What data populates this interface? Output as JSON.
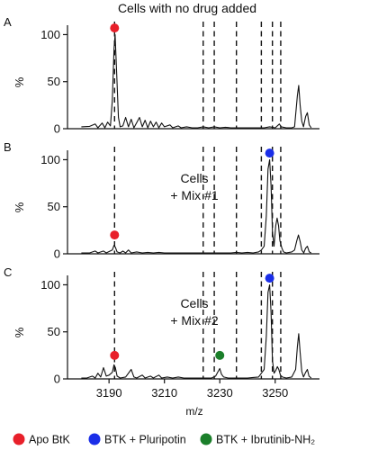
{
  "title": "Cells with no drug added",
  "xlabel": "m/z",
  "colors": {
    "apo": "#e8202a",
    "pluripotin": "#1a2ee8",
    "ibrutinib": "#1b7f2a"
  },
  "legend": [
    {
      "label": "Apo BtK",
      "color": "#e8202a"
    },
    {
      "label": "BTK + Pluripotin",
      "color": "#1a2ee8"
    },
    {
      "label": "BTK + Ibrutinib-NH₂",
      "color": "#1b7f2a"
    }
  ],
  "chart_data": {
    "type": "line",
    "xlabel": "m/z",
    "ylabel": "%",
    "xlim": [
      3175,
      3266
    ],
    "ylim": [
      0,
      110
    ],
    "xticks": [
      3190,
      3210,
      3230,
      3250
    ],
    "yticks": [
      0,
      50,
      100
    ],
    "panels": [
      {
        "letter": "A",
        "annotation": [],
        "dashed_lines": [
          3192,
          3224,
          3228,
          3236,
          3245,
          3249,
          3252
        ],
        "markers": [
          {
            "x": 3192,
            "y": 107,
            "label": "Apo BtK"
          }
        ],
        "spectrum": [
          [
            3180,
            2
          ],
          [
            3183,
            2.5
          ],
          [
            3185,
            5
          ],
          [
            3186,
            1
          ],
          [
            3187.5,
            6
          ],
          [
            3188.5,
            1
          ],
          [
            3189.5,
            7
          ],
          [
            3190.5,
            3
          ],
          [
            3191.2,
            30
          ],
          [
            3191.8,
            85
          ],
          [
            3192.2,
            100
          ],
          [
            3192.8,
            55
          ],
          [
            3193.4,
            12
          ],
          [
            3194,
            2
          ],
          [
            3195,
            3
          ],
          [
            3196,
            12
          ],
          [
            3197,
            2
          ],
          [
            3198,
            10
          ],
          [
            3199,
            1
          ],
          [
            3201,
            12
          ],
          [
            3202,
            2
          ],
          [
            3203,
            9
          ],
          [
            3204,
            1
          ],
          [
            3205,
            8
          ],
          [
            3206,
            2
          ],
          [
            3207,
            7
          ],
          [
            3208,
            1
          ],
          [
            3209,
            6
          ],
          [
            3210,
            2
          ],
          [
            3212,
            4
          ],
          [
            3213,
            1
          ],
          [
            3215,
            3
          ],
          [
            3216,
            1
          ],
          [
            3218,
            2
          ],
          [
            3220,
            1
          ],
          [
            3222,
            1
          ],
          [
            3224,
            2
          ],
          [
            3226,
            1
          ],
          [
            3228,
            2
          ],
          [
            3230,
            1
          ],
          [
            3232,
            1.5
          ],
          [
            3234,
            1
          ],
          [
            3236,
            1
          ],
          [
            3238,
            1
          ],
          [
            3240,
            1
          ],
          [
            3242,
            1
          ],
          [
            3244,
            1
          ],
          [
            3246,
            1
          ],
          [
            3248,
            2
          ],
          [
            3250,
            1
          ],
          [
            3251.5,
            5
          ],
          [
            3252.2,
            2
          ],
          [
            3254,
            1
          ],
          [
            3256,
            1
          ],
          [
            3257,
            2
          ],
          [
            3258,
            35
          ],
          [
            3258.5,
            46
          ],
          [
            3259,
            25
          ],
          [
            3259.6,
            8
          ],
          [
            3260.2,
            2
          ],
          [
            3261,
            13
          ],
          [
            3261.6,
            17
          ],
          [
            3262.3,
            4
          ],
          [
            3263,
            1
          ]
        ]
      },
      {
        "letter": "B",
        "annotation": [
          "Cells",
          "+ Mix #1"
        ],
        "dashed_lines": [
          3192,
          3224,
          3228,
          3236,
          3245,
          3249,
          3252
        ],
        "markers": [
          {
            "x": 3192,
            "y": 20,
            "label": "Apo BtK"
          },
          {
            "x": 3248,
            "y": 107,
            "label": "BTK + Pluripotin"
          }
        ],
        "spectrum": [
          [
            3180,
            1
          ],
          [
            3183,
            1
          ],
          [
            3185,
            3
          ],
          [
            3186,
            1
          ],
          [
            3188,
            3
          ],
          [
            3189,
            1
          ],
          [
            3191.2,
            4
          ],
          [
            3191.8,
            9
          ],
          [
            3192.3,
            7
          ],
          [
            3192.9,
            2
          ],
          [
            3194,
            1
          ],
          [
            3195,
            3
          ],
          [
            3196,
            1
          ],
          [
            3197,
            4
          ],
          [
            3198,
            1
          ],
          [
            3200,
            2
          ],
          [
            3202,
            1
          ],
          [
            3204,
            1.5
          ],
          [
            3206,
            1
          ],
          [
            3208,
            1.5
          ],
          [
            3210,
            1
          ],
          [
            3212,
            1
          ],
          [
            3214,
            1
          ],
          [
            3216,
            1
          ],
          [
            3218,
            1
          ],
          [
            3220,
            1
          ],
          [
            3222,
            1
          ],
          [
            3224,
            1
          ],
          [
            3226,
            1
          ],
          [
            3228,
            1
          ],
          [
            3230,
            1
          ],
          [
            3232,
            1
          ],
          [
            3234,
            1
          ],
          [
            3236,
            1.5
          ],
          [
            3238,
            1
          ],
          [
            3240,
            1.5
          ],
          [
            3242,
            1
          ],
          [
            3244,
            2
          ],
          [
            3245,
            4
          ],
          [
            3246,
            8
          ],
          [
            3246.8,
            40
          ],
          [
            3247.4,
            90
          ],
          [
            3248,
            100
          ],
          [
            3248.5,
            72
          ],
          [
            3249,
            24
          ],
          [
            3249.6,
            8
          ],
          [
            3250.2,
            30
          ],
          [
            3250.7,
            38
          ],
          [
            3251.2,
            30
          ],
          [
            3251.7,
            14
          ],
          [
            3252.4,
            6
          ],
          [
            3253,
            2
          ],
          [
            3254,
            1
          ],
          [
            3256,
            2
          ],
          [
            3257,
            4
          ],
          [
            3257.8,
            14
          ],
          [
            3258.4,
            20
          ],
          [
            3259,
            13
          ],
          [
            3259.6,
            4
          ],
          [
            3260.3,
            1
          ],
          [
            3261,
            6
          ],
          [
            3261.6,
            8
          ],
          [
            3262.3,
            2
          ],
          [
            3263,
            1
          ]
        ]
      },
      {
        "letter": "C",
        "annotation": [
          "Cells",
          "+ Mix #2"
        ],
        "dashed_lines": [
          3192,
          3224,
          3228,
          3236,
          3245,
          3249,
          3252
        ],
        "markers": [
          {
            "x": 3192,
            "y": 25,
            "label": "Apo BtK"
          },
          {
            "x": 3230,
            "y": 25,
            "label": "BTK + Ibrutinib-NH₂"
          },
          {
            "x": 3248,
            "y": 107,
            "label": "BTK + Pluripotin"
          }
        ],
        "spectrum": [
          [
            3180,
            1
          ],
          [
            3182,
            1
          ],
          [
            3184,
            3
          ],
          [
            3185,
            1
          ],
          [
            3186,
            6
          ],
          [
            3187,
            2
          ],
          [
            3188,
            12
          ],
          [
            3189,
            3
          ],
          [
            3190,
            4
          ],
          [
            3191.2,
            7
          ],
          [
            3191.8,
            15
          ],
          [
            3192.3,
            12
          ],
          [
            3192.9,
            3
          ],
          [
            3194,
            1
          ],
          [
            3196,
            2
          ],
          [
            3198,
            10
          ],
          [
            3199,
            2
          ],
          [
            3200,
            1
          ],
          [
            3202,
            4
          ],
          [
            3203,
            1
          ],
          [
            3205,
            3
          ],
          [
            3206,
            1
          ],
          [
            3208,
            4
          ],
          [
            3209,
            1
          ],
          [
            3211,
            2
          ],
          [
            3213,
            1
          ],
          [
            3215,
            2
          ],
          [
            3217,
            1
          ],
          [
            3219,
            1
          ],
          [
            3221,
            1
          ],
          [
            3223,
            1
          ],
          [
            3225,
            1
          ],
          [
            3227,
            1
          ],
          [
            3228.5,
            3
          ],
          [
            3229.4,
            8
          ],
          [
            3230,
            11
          ],
          [
            3230.6,
            5
          ],
          [
            3231.4,
            2
          ],
          [
            3233,
            1
          ],
          [
            3234,
            1
          ],
          [
            3236,
            1
          ],
          [
            3238,
            1
          ],
          [
            3240,
            1
          ],
          [
            3242,
            1.5
          ],
          [
            3244,
            2
          ],
          [
            3245,
            6
          ],
          [
            3246,
            10
          ],
          [
            3246.8,
            45
          ],
          [
            3247.4,
            92
          ],
          [
            3248,
            100
          ],
          [
            3248.5,
            70
          ],
          [
            3249,
            20
          ],
          [
            3249.6,
            6
          ],
          [
            3250.2,
            9
          ],
          [
            3250.8,
            13
          ],
          [
            3251.3,
            10
          ],
          [
            3251.9,
            4
          ],
          [
            3252.6,
            2
          ],
          [
            3254,
            1
          ],
          [
            3256,
            2
          ],
          [
            3257.4,
            10
          ],
          [
            3258,
            34
          ],
          [
            3258.5,
            48
          ],
          [
            3259,
            28
          ],
          [
            3259.6,
            8
          ],
          [
            3260.2,
            2
          ],
          [
            3261,
            7
          ],
          [
            3261.6,
            10
          ],
          [
            3262.2,
            3
          ],
          [
            3263,
            1
          ]
        ]
      }
    ]
  }
}
